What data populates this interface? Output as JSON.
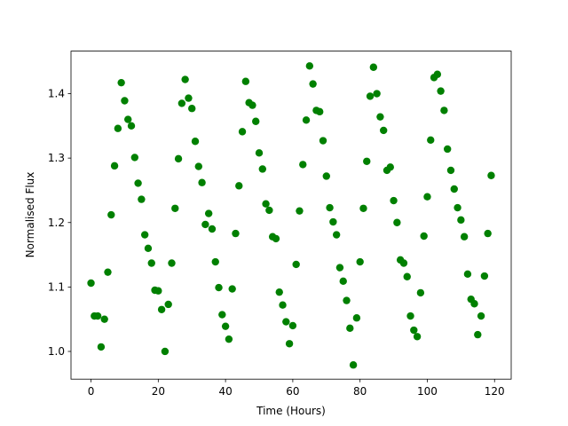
{
  "chart_data": {
    "type": "scatter",
    "xlabel": "Time (Hours)",
    "ylabel": "Normalised Flux",
    "color": "#008000",
    "x": [
      0,
      1,
      2,
      3,
      4,
      5,
      6,
      7,
      8,
      9,
      10,
      11,
      12,
      13,
      14,
      15,
      16,
      17,
      18,
      19,
      20,
      21,
      22,
      23,
      24,
      25,
      26,
      27,
      28,
      29,
      30,
      31,
      32,
      33,
      34,
      35,
      36,
      37,
      38,
      39,
      40,
      41,
      42,
      43,
      44,
      45,
      46,
      47,
      48,
      49,
      50,
      51,
      52,
      53,
      54,
      55,
      56,
      57,
      58,
      59,
      60,
      61,
      62,
      63,
      64,
      65,
      66,
      67,
      68,
      69,
      70,
      71,
      72,
      73,
      74,
      75,
      76,
      77,
      78,
      79,
      80,
      81,
      82,
      83,
      84,
      85,
      86,
      87,
      88,
      89,
      90,
      91,
      92,
      93,
      94,
      95,
      96,
      97,
      98,
      99,
      100,
      101,
      102,
      103,
      104,
      105,
      106,
      107,
      108,
      109,
      110,
      111,
      112,
      113,
      114,
      115,
      116,
      117,
      118,
      119
    ],
    "values": [
      1.106,
      1.055,
      1.055,
      1.007,
      1.05,
      1.123,
      1.212,
      1.288,
      1.346,
      1.417,
      1.389,
      1.36,
      1.35,
      1.301,
      1.261,
      1.236,
      1.181,
      1.16,
      1.137,
      1.095,
      1.094,
      1.065,
      1.0,
      1.073,
      1.137,
      1.222,
      1.299,
      1.385,
      1.422,
      1.393,
      1.377,
      1.326,
      1.287,
      1.262,
      1.197,
      1.214,
      1.19,
      1.139,
      1.099,
      1.057,
      1.039,
      1.019,
      1.097,
      1.183,
      1.257,
      1.341,
      1.419,
      1.386,
      1.382,
      1.357,
      1.308,
      1.283,
      1.229,
      1.219,
      1.178,
      1.175,
      1.092,
      1.072,
      1.046,
      1.012,
      1.04,
      1.135,
      1.218,
      1.29,
      1.359,
      1.443,
      1.415,
      1.374,
      1.372,
      1.327,
      1.272,
      1.223,
      1.201,
      1.181,
      1.13,
      1.109,
      1.079,
      1.036,
      0.979,
      1.052,
      1.139,
      1.222,
      1.295,
      1.396,
      1.441,
      1.4,
      1.364,
      1.343,
      1.281,
      1.286,
      1.234,
      1.2,
      1.142,
      1.137,
      1.116,
      1.055,
      1.033,
      1.023,
      1.091,
      1.179,
      1.24,
      1.328,
      1.425,
      1.43,
      1.404,
      1.374,
      1.314,
      1.281,
      1.252,
      1.223,
      1.204,
      1.178,
      1.12,
      1.081,
      1.074,
      1.026,
      1.055,
      1.117,
      1.183,
      1.273
    ],
    "xlim": [
      -5.95,
      124.95
    ],
    "ylim": [
      0.957,
      1.466
    ],
    "xticks": [
      0,
      20,
      40,
      60,
      80,
      100,
      120
    ],
    "yticks": [
      {
        "value": 1.0,
        "label": "1.0"
      },
      1.1,
      1.2,
      1.3,
      1.4
    ]
  }
}
